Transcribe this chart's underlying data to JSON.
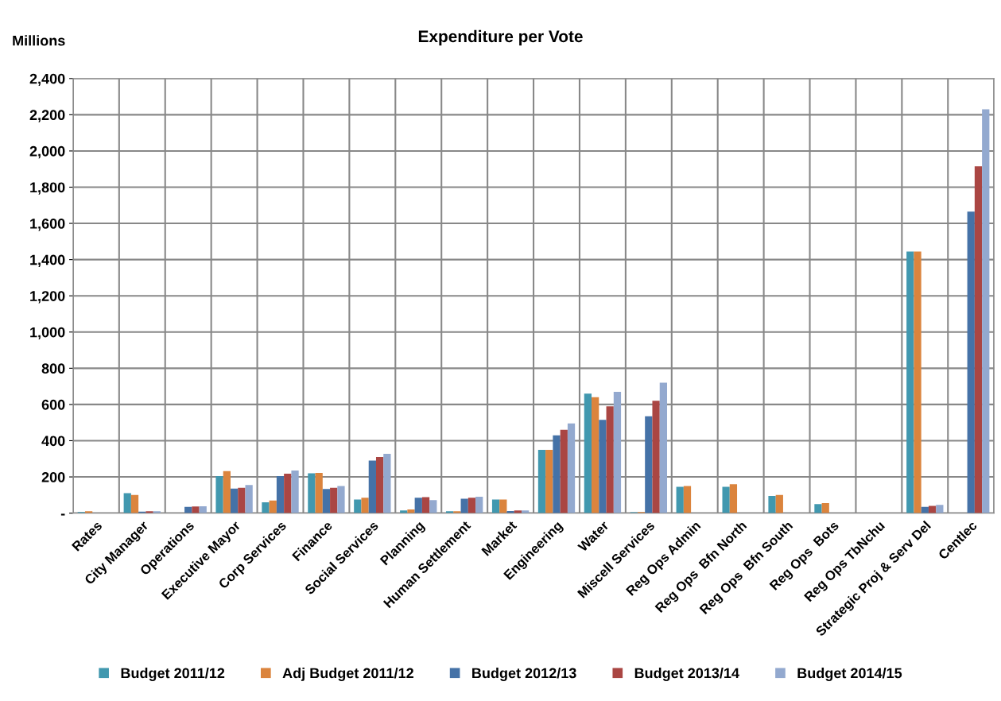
{
  "chart_data": {
    "type": "bar",
    "title": "Expenditure per Vote",
    "ylabel": "Millions",
    "categories": [
      "Rates",
      "City Manager",
      "Operations",
      "Executive Mayor",
      "Corp Services",
      "Finance",
      "Social Services",
      "Planning",
      "Human Settlement",
      "Market",
      "Engineering",
      "Water",
      "Miscell Services",
      "Reg Ops Admin",
      "Reg Ops  Bfn North",
      "Reg Ops  Bfn South",
      "Reg Ops  Bots",
      "Reg Ops TbNchu",
      "Strategic Proj & Serv Del",
      "Centlec"
    ],
    "series": [
      {
        "name": "Budget 2011/12",
        "color": "#4198af",
        "values": [
          6,
          110,
          null,
          205,
          60,
          220,
          75,
          15,
          10,
          75,
          350,
          660,
          5,
          145,
          145,
          95,
          50,
          null,
          1445,
          null
        ]
      },
      {
        "name": "Adj Budget 2011/12",
        "color": "#db843d",
        "values": [
          10,
          100,
          null,
          232,
          70,
          222,
          85,
          20,
          10,
          75,
          350,
          640,
          6,
          150,
          160,
          100,
          55,
          null,
          1445,
          null
        ]
      },
      {
        "name": "Budget 2012/13",
        "color": "#4572a7",
        "values": [
          null,
          8,
          35,
          135,
          205,
          133,
          290,
          85,
          80,
          12,
          430,
          515,
          535,
          null,
          null,
          null,
          null,
          null,
          35,
          1665
        ]
      },
      {
        "name": "Budget 2013/14",
        "color": "#aa4643",
        "values": [
          null,
          10,
          37,
          140,
          218,
          140,
          310,
          88,
          85,
          15,
          460,
          590,
          620,
          null,
          null,
          null,
          null,
          null,
          40,
          1915
        ]
      },
      {
        "name": "Budget 2014/15",
        "color": "#93a9cf",
        "values": [
          null,
          10,
          38,
          155,
          235,
          150,
          328,
          72,
          90,
          15,
          495,
          670,
          720,
          null,
          null,
          null,
          null,
          null,
          45,
          2230
        ]
      }
    ],
    "ylim": [
      0,
      2400
    ],
    "yticks": [
      {
        "value": 0,
        "label": "-"
      },
      {
        "value": 200,
        "label": "200"
      },
      {
        "value": 400,
        "label": "400"
      },
      {
        "value": 600,
        "label": "600"
      },
      {
        "value": 800,
        "label": "800"
      },
      {
        "value": 1000,
        "label": "1,000"
      },
      {
        "value": 1200,
        "label": "1,200"
      },
      {
        "value": 1400,
        "label": "1,400"
      },
      {
        "value": 1600,
        "label": "1,600"
      },
      {
        "value": 1800,
        "label": "1,800"
      },
      {
        "value": 2000,
        "label": "2,000"
      },
      {
        "value": 2200,
        "label": "2,200"
      },
      {
        "value": 2400,
        "label": "2,400"
      }
    ],
    "grid": true,
    "legend": "bottom"
  }
}
